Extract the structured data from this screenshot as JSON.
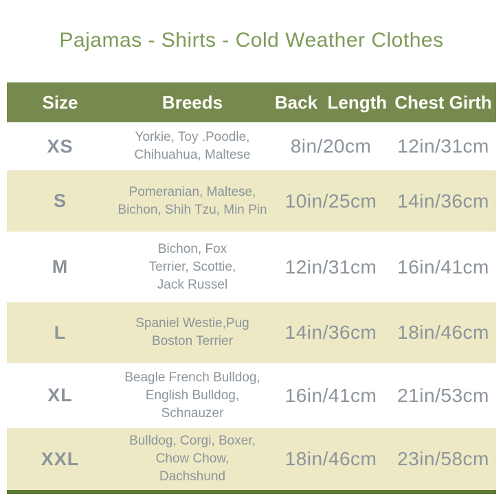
{
  "title": "Pajamas - Shirts - Cold Weather Clothes",
  "colors": {
    "title_green": "#7d9b58",
    "header_bg": "#76894e",
    "header_text": "#fdfdf8",
    "row_white": "#ffffff",
    "row_cream": "#ede9c5",
    "body_text_gray": "#8c949c",
    "bottom_border_green": "#5e7c31"
  },
  "table": {
    "headers": [
      "Size",
      "Breeds",
      "Back  Length",
      "Chest Girth"
    ],
    "rows": [
      {
        "size": "XS",
        "breeds": "Yorkie, Toy .Poodle,\nChihuahua, Maltese",
        "back_length": "8in/20cm",
        "chest_girth": "12in/31cm"
      },
      {
        "size": "S",
        "breeds": "Pomeranian, Maltese,\nBichon, Shih Tzu, Min Pin",
        "back_length": "10in/25cm",
        "chest_girth": "14in/36cm"
      },
      {
        "size": "M",
        "breeds": "Bichon, Fox\nTerrier, Scottie,\nJack Russel",
        "back_length": "12in/31cm",
        "chest_girth": "16in/41cm"
      },
      {
        "size": "L",
        "breeds": "Spaniel Westie,Pug\nBoston Terrier",
        "back_length": "14in/36cm",
        "chest_girth": "18in/46cm"
      },
      {
        "size": "XL",
        "breeds": "Beagle French Bulldog,\nEnglish Bulldog,\nSchnauzer",
        "back_length": "16in/41cm",
        "chest_girth": "21in/53cm"
      },
      {
        "size": "XXL",
        "breeds": "Bulldog, Corgi, Boxer,\nChow Chow,\nDachshund",
        "back_length": "18in/46cm",
        "chest_girth": "23in/58cm"
      }
    ]
  },
  "chart_data": {
    "type": "table",
    "title": "Pajamas - Shirts - Cold Weather Clothes",
    "columns": [
      "Size",
      "Breeds",
      "Back Length",
      "Chest Girth"
    ],
    "rows": [
      [
        "XS",
        "Yorkie, Toy .Poodle, Chihuahua, Maltese",
        "8in/20cm",
        "12in/31cm"
      ],
      [
        "S",
        "Pomeranian, Maltese, Bichon, Shih Tzu, Min Pin",
        "10in/25cm",
        "14in/36cm"
      ],
      [
        "M",
        "Bichon, Fox Terrier, Scottie, Jack Russel",
        "12in/31cm",
        "16in/41cm"
      ],
      [
        "L",
        "Spaniel Westie,Pug Boston Terrier",
        "14in/36cm",
        "18in/46cm"
      ],
      [
        "XL",
        "Beagle French Bulldog, English Bulldog, Schnauzer",
        "16in/41cm",
        "21in/53cm"
      ],
      [
        "XXL",
        "Bulldog, Corgi, Boxer, Chow Chow, Dachshund",
        "18in/46cm",
        "23in/58cm"
      ]
    ]
  }
}
